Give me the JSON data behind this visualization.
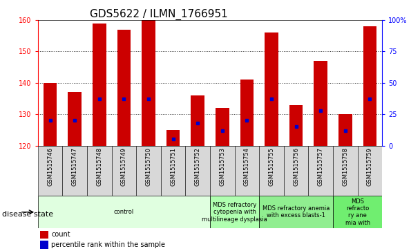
{
  "title": "GDS5622 / ILMN_1766951",
  "samples": [
    "GSM1515746",
    "GSM1515747",
    "GSM1515748",
    "GSM1515749",
    "GSM1515750",
    "GSM1515751",
    "GSM1515752",
    "GSM1515753",
    "GSM1515754",
    "GSM1515755",
    "GSM1515756",
    "GSM1515757",
    "GSM1515758",
    "GSM1515759"
  ],
  "counts": [
    140,
    137,
    159,
    157,
    160,
    125,
    136,
    132,
    141,
    156,
    133,
    147,
    130,
    158
  ],
  "percentile_ranks": [
    20,
    20,
    37,
    37,
    37,
    5,
    18,
    12,
    20,
    37,
    15,
    28,
    12,
    37
  ],
  "ymin": 120,
  "ymax": 160,
  "yticks_left": [
    120,
    130,
    140,
    150,
    160
  ],
  "yticks_right": [
    0,
    25,
    50,
    75,
    100
  ],
  "right_yticklabels": [
    "0",
    "25",
    "50",
    "75",
    "100%"
  ],
  "bar_color": "#cc0000",
  "dot_color": "#0000cc",
  "bar_width": 0.55,
  "grid_lines": [
    130,
    140,
    150
  ],
  "disease_groups": [
    {
      "label": "control",
      "start": 0,
      "end": 7,
      "color": "#e0ffe0"
    },
    {
      "label": "MDS refractory\ncytopenia with\nmultilineage dysplasia",
      "start": 7,
      "end": 9,
      "color": "#b0ffb0"
    },
    {
      "label": "MDS refractory anemia\nwith excess blasts-1",
      "start": 9,
      "end": 12,
      "color": "#90ee90"
    },
    {
      "label": "MDS\nrefracto\nry ane\nmia with",
      "start": 12,
      "end": 14,
      "color": "#70ee70"
    }
  ],
  "legend_count_label": "count",
  "legend_pct_label": "percentile rank within the sample",
  "disease_label": "disease state",
  "title_fontsize": 11,
  "tick_fontsize": 7,
  "sample_fontsize": 6,
  "label_fontsize": 8,
  "disease_fontsize": 6
}
